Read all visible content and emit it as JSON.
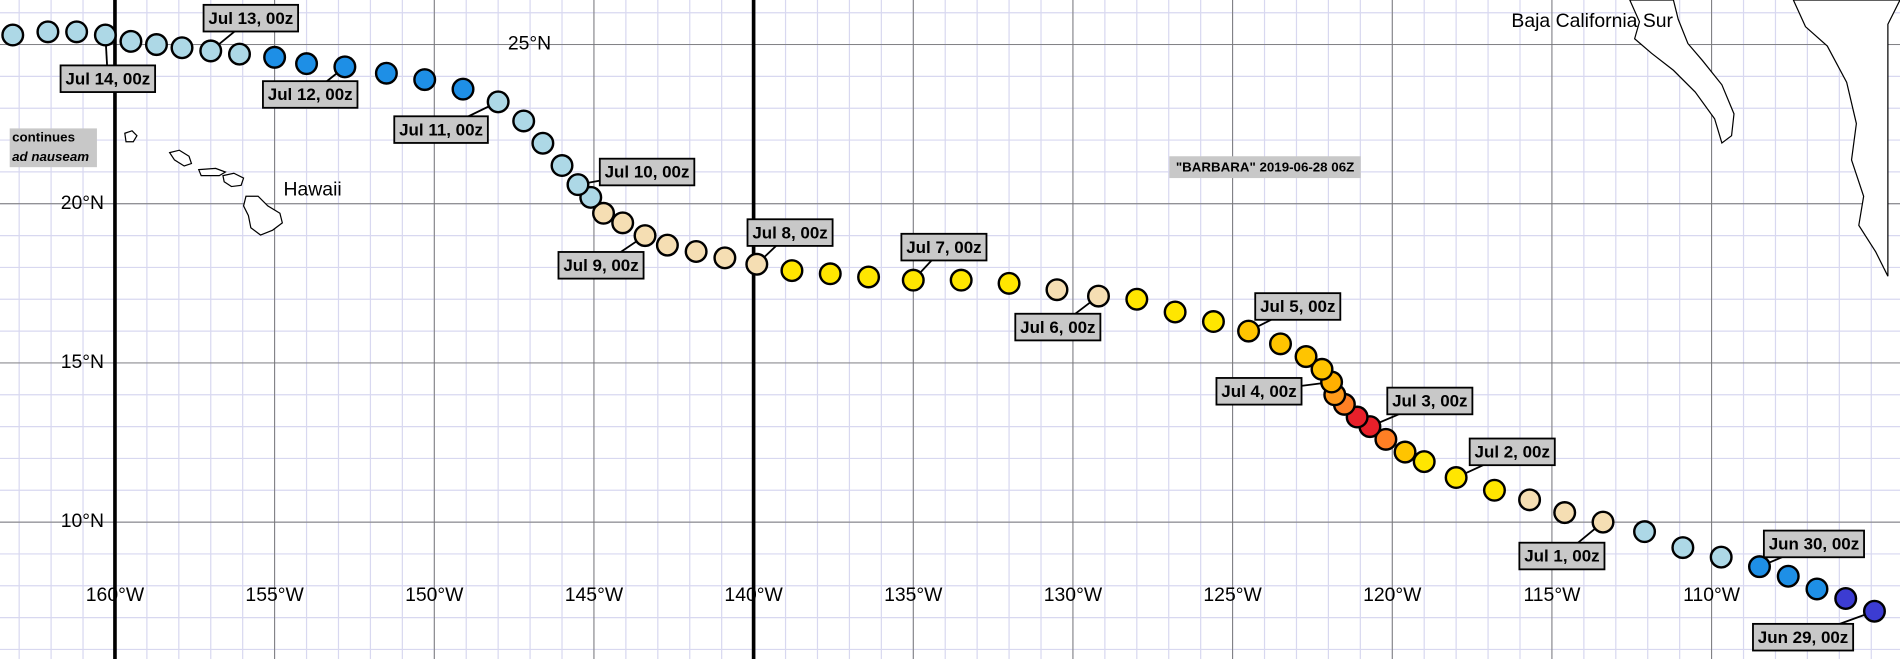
{
  "chart_data": {
    "type": "track",
    "title": "\"BARBARA\" 2019-06-28 06Z",
    "note": [
      "continues",
      "ad nauseam"
    ],
    "place_labels": [
      "Baja California Sur",
      "Hawaii"
    ],
    "xlim": [
      -163.6,
      -104.1
    ],
    "ylim": [
      5.7,
      26.4
    ],
    "xticks": [
      {
        "value": -160,
        "label": "160°W"
      },
      {
        "value": -155,
        "label": "155°W"
      },
      {
        "value": -150,
        "label": "150°W"
      },
      {
        "value": -145,
        "label": "145°W"
      },
      {
        "value": -140,
        "label": "140°W"
      },
      {
        "value": -135,
        "label": "135°W"
      },
      {
        "value": -130,
        "label": "130°W"
      },
      {
        "value": -125,
        "label": "125°W"
      },
      {
        "value": -120,
        "label": "120°W"
      },
      {
        "value": -115,
        "label": "115°W"
      },
      {
        "value": -110,
        "label": "110°W"
      }
    ],
    "yticks": [
      {
        "value": 10,
        "label": "10°N"
      },
      {
        "value": 15,
        "label": "15°N"
      },
      {
        "value": 20,
        "label": "20°N"
      },
      {
        "value": 25,
        "label": "25°N"
      }
    ],
    "boundary_lons": [
      -160,
      -140
    ],
    "grid": true,
    "minor_grid": true,
    "x": [
      -104.9,
      -105.8,
      -106.7,
      -107.6,
      -108.5,
      -109.7,
      -110.9,
      -112.1,
      -113.4,
      -114.6,
      -115.7,
      -116.8,
      -118.0,
      -119.0,
      -119.6,
      -120.2,
      -120.7,
      -121.1,
      -121.5,
      -121.8,
      -121.9,
      -122.2,
      -122.7,
      -123.5,
      -124.5,
      -125.6,
      -126.8,
      -128.0,
      -129.2,
      -130.5,
      -132.0,
      -133.5,
      -135.0,
      -136.4,
      -137.6,
      -138.8,
      -139.9,
      -140.9,
      -141.8,
      -142.7,
      -143.4,
      -144.1,
      -144.7,
      -145.1,
      -145.5,
      -146.0,
      -146.6,
      -147.2,
      -148.0,
      -149.1,
      -150.3,
      -151.5,
      -152.8,
      -154.0,
      -155.0,
      -156.1,
      -157.0,
      -157.9,
      -158.7,
      -159.5,
      -160.3,
      -161.2,
      -162.1,
      -163.2
    ],
    "values": [
      7.2,
      7.6,
      7.9,
      8.3,
      8.6,
      8.9,
      9.2,
      9.7,
      10.0,
      10.3,
      10.7,
      11.0,
      11.4,
      11.9,
      12.2,
      12.6,
      13.0,
      13.3,
      13.7,
      14.0,
      14.4,
      14.8,
      15.2,
      15.6,
      16.0,
      16.3,
      16.6,
      17.0,
      17.1,
      17.3,
      17.5,
      17.6,
      17.6,
      17.7,
      17.8,
      17.9,
      18.1,
      18.3,
      18.5,
      18.7,
      19.0,
      19.4,
      19.7,
      20.2,
      20.6,
      21.2,
      21.9,
      22.6,
      23.2,
      23.6,
      23.9,
      24.1,
      24.3,
      24.4,
      24.6,
      24.7,
      24.8,
      24.9,
      25.0,
      25.1,
      25.3,
      25.4,
      25.4,
      25.3
    ],
    "colors": [
      "#3c3cd2",
      "#3c3cd2",
      "#1e8fe6",
      "#1e8fe6",
      "#1e8fe6",
      "#add8e6",
      "#add8e6",
      "#add8e6",
      "#f5deb3",
      "#f5deb3",
      "#f5deb3",
      "#ffe600",
      "#ffe600",
      "#ffe600",
      "#ffc400",
      "#ff7f24",
      "#e8202a",
      "#e8202a",
      "#ff7f24",
      "#ff9a1a",
      "#ffb000",
      "#ffc400",
      "#ffc400",
      "#ffc400",
      "#ffc400",
      "#ffe600",
      "#ffe600",
      "#ffe600",
      "#f5deb3",
      "#f5deb3",
      "#ffe600",
      "#ffe600",
      "#ffe600",
      "#ffe600",
      "#ffe600",
      "#ffe600",
      "#f5deb3",
      "#f5deb3",
      "#f5deb3",
      "#f5deb3",
      "#f5deb3",
      "#f5deb3",
      "#f5deb3",
      "#add8e6",
      "#add8e6",
      "#add8e6",
      "#add8e6",
      "#add8e6",
      "#add8e6",
      "#1e8fe6",
      "#1e8fe6",
      "#1e8fe6",
      "#1e8fe6",
      "#1e8fe6",
      "#1e8fe6",
      "#add8e6",
      "#add8e6",
      "#add8e6",
      "#add8e6",
      "#add8e6",
      "#add8e6",
      "#add8e6",
      "#add8e6",
      "#add8e6"
    ],
    "point_labels": [
      "Jun 29, 00z",
      null,
      null,
      null,
      "Jun 30, 00z",
      null,
      null,
      null,
      "Jul 1, 00z",
      null,
      null,
      null,
      "Jul 2, 00z",
      null,
      null,
      null,
      "Jul 3, 00z",
      null,
      null,
      null,
      "Jul 4, 00z",
      null,
      null,
      null,
      "Jul 5, 00z",
      null,
      null,
      null,
      "Jul 6, 00z",
      null,
      null,
      null,
      "Jul 7, 00z",
      null,
      null,
      null,
      "Jul 8, 00z",
      null,
      null,
      null,
      "Jul 9, 00z",
      null,
      null,
      null,
      "Jul 10, 00z",
      null,
      null,
      null,
      "Jul 11, 00z",
      null,
      null,
      null,
      "Jul 12, 00z",
      null,
      null,
      null,
      "Jul 13, 00z",
      null,
      null,
      null,
      "Jul 14, 00z",
      null,
      null,
      null
    ]
  }
}
